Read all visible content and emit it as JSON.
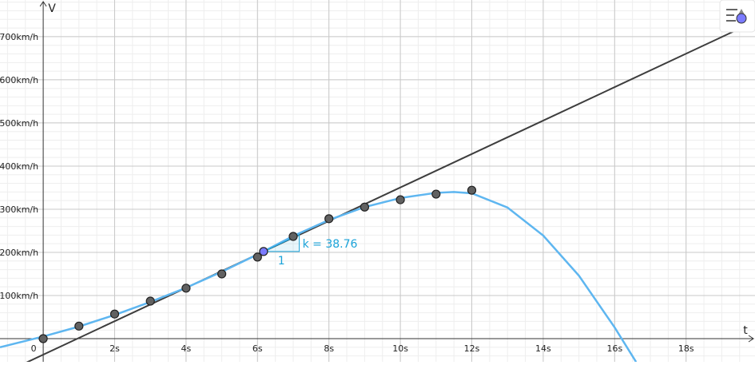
{
  "chart_data": {
    "type": "scatter",
    "xlabel": "t",
    "ylabel": "V",
    "xlim": [
      -1.21,
      19.93
    ],
    "ylim": [
      -53.7,
      785
    ],
    "xticks": [
      0,
      {
        "value": 2,
        "label": "2s"
      },
      {
        "value": 4,
        "label": "4s"
      },
      {
        "value": 6,
        "label": "6s"
      },
      {
        "value": 8,
        "label": "8s"
      },
      {
        "value": 10,
        "label": "10s"
      },
      {
        "value": 12,
        "label": "12s"
      },
      {
        "value": 14,
        "label": "14s"
      },
      {
        "value": 16,
        "label": "16s"
      },
      {
        "value": 18,
        "label": "18s"
      }
    ],
    "yticks": [
      {
        "value": 100,
        "label": "100km/h"
      },
      {
        "value": 200,
        "label": "200km/h"
      },
      {
        "value": 300,
        "label": "300km/h"
      },
      {
        "value": 400,
        "label": "400km/h"
      },
      {
        "value": 500,
        "label": "500km/h"
      },
      {
        "value": 600,
        "label": "600km/h"
      },
      {
        "value": 700,
        "label": "700km/h"
      }
    ],
    "grid": true,
    "series": [
      {
        "type": "scatter",
        "color": "#616161",
        "x": [
          0,
          1,
          2,
          3,
          4,
          5,
          6,
          7,
          8,
          9,
          10,
          11,
          12
        ],
        "values": [
          0,
          29,
          57,
          87,
          117,
          150,
          189,
          237,
          278,
          305,
          322,
          335,
          344
        ]
      },
      {
        "type": "line",
        "color": "#5eb6f0",
        "x": [
          -1.21,
          0,
          1,
          2,
          3,
          4,
          5,
          6,
          7,
          8,
          9,
          10,
          11,
          11.5,
          12,
          13,
          14,
          15,
          16,
          16.6
        ],
        "values": [
          -20,
          5,
          28,
          55,
          85,
          118,
          155,
          195,
          238,
          275,
          305,
          326,
          338,
          340,
          337,
          304,
          239,
          146,
          26,
          -54
        ]
      }
    ],
    "tangent": {
      "x": 6.17,
      "value": 202,
      "slope": 38.76,
      "slope_label": "k = 38.76",
      "run_label": 1,
      "color": "#3d3d3d",
      "point_color": "#7b7bff",
      "triangle_color": "#1aa3d9"
    }
  }
}
